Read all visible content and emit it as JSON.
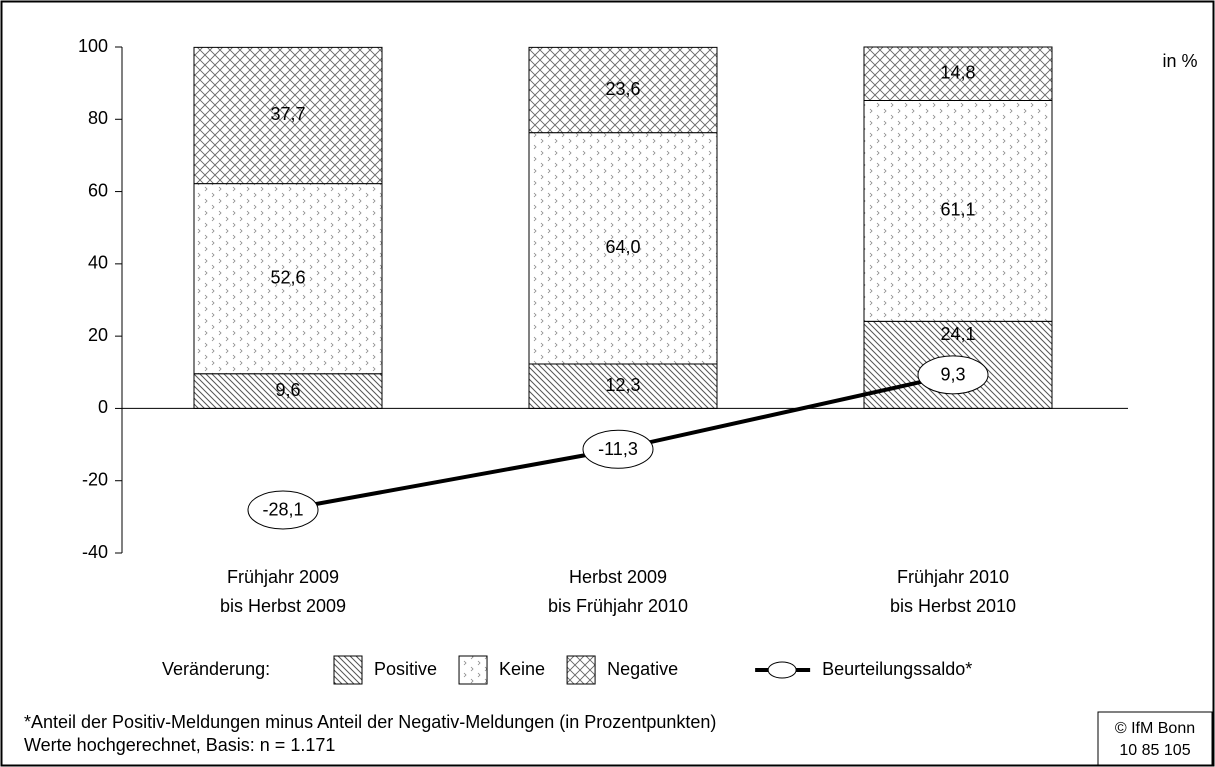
{
  "chart_data": {
    "type": "stacked-bar-line",
    "unit_label": "in %",
    "categories": [
      [
        "Frühjahr 2009",
        "bis Herbst 2009"
      ],
      [
        "Herbst 2009",
        "bis Frühjahr 2010"
      ],
      [
        "Frühjahr 2010",
        "bis Herbst 2010"
      ]
    ],
    "ylim": [
      -40,
      100
    ],
    "yticks": [
      -40,
      -20,
      0,
      20,
      40,
      60,
      80,
      100
    ],
    "legend_title": "Veränderung:",
    "series": [
      {
        "name": "Positive",
        "pattern": "hatch",
        "values": [
          9.6,
          12.3,
          24.1
        ],
        "value_labels": [
          "9,6",
          "12,3",
          "24,1"
        ]
      },
      {
        "name": "Keine",
        "pattern": "dots",
        "values": [
          52.6,
          64.0,
          61.1
        ],
        "value_labels": [
          "52,6",
          "64,0",
          "61,1"
        ]
      },
      {
        "name": "Negative",
        "pattern": "cross",
        "values": [
          37.7,
          23.6,
          14.8
        ],
        "value_labels": [
          "37,7",
          "23,6",
          "14,8"
        ]
      },
      {
        "name": "Beurteilungssaldo*",
        "kind": "line",
        "color": "#000000",
        "values": [
          -28.1,
          -11.3,
          9.3
        ],
        "value_labels": [
          "-28,1",
          "-11,3",
          "9,3"
        ]
      }
    ],
    "footnotes": [
      "*Anteil der Positiv-Meldungen minus Anteil der Negativ-Meldungen (in Prozentpunkten)",
      "Werte hochgerechnet, Basis: n = 1.171"
    ],
    "source": [
      "© IfM Bonn",
      "10  85  105"
    ]
  }
}
